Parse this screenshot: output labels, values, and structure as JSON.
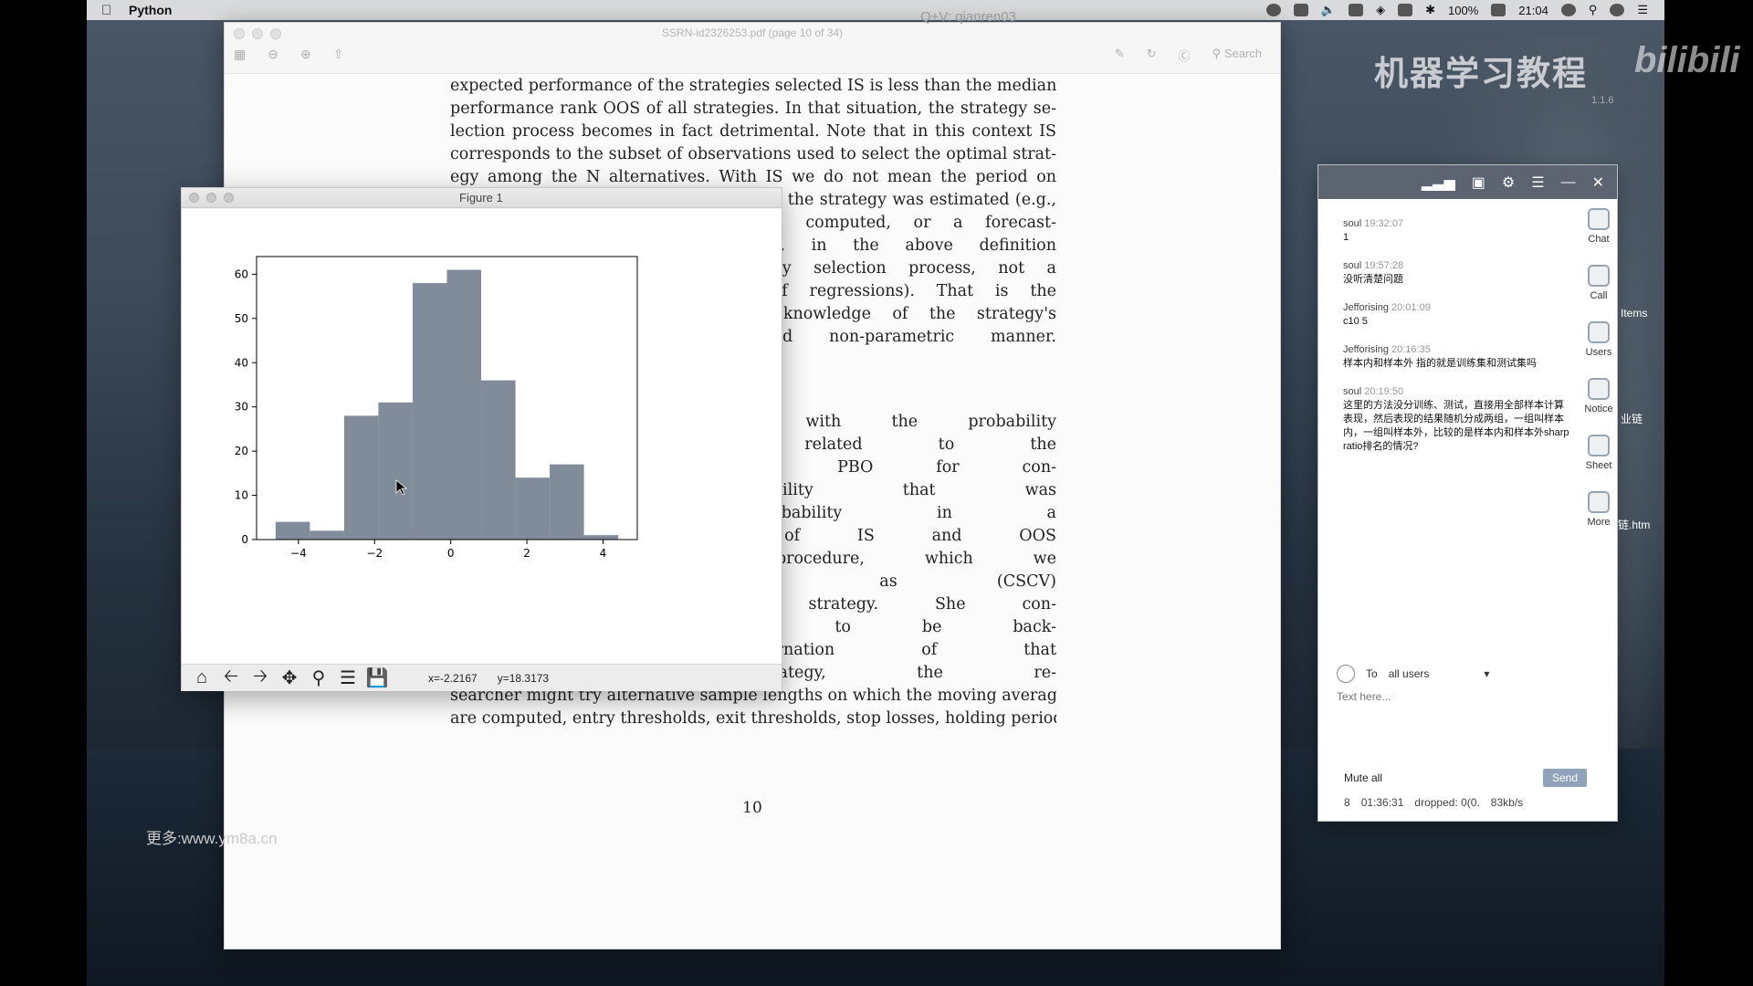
{
  "menubar": {
    "app_name": "Python",
    "battery": "100%",
    "clock": "21:04"
  },
  "overlay": {
    "qq": "Q+V: qianren03",
    "cn_watermark": "机器学习教程",
    "bili_watermark": "bilibili",
    "bili_sub": "1.1.6",
    "url_watermark": "更多:www.ym8a.cn",
    "desk_label_1": "Items",
    "desk_label_2": "业链",
    "desk_label_3": "链.htm"
  },
  "pdf": {
    "window_title": "SSRN-id2326253.pdf (page 10 of 34)",
    "search_placeholder": "Search",
    "lines_top": [
      "expected performance of the strategies selected IS is less than the median",
      "performance rank OOS of all strategies. In that situation, the strategy se-",
      "lection process becomes in fact detrimental. Note that in this context IS",
      "corresponds to the subset of observations used to select the optimal strat-",
      "egy among the N alternatives. With IS we do not mean the period on",
      "which the investment model was fit, e.g. the strategy was estimated (e.g.,",
      "over which moving averages are computed, or a forecast-",
      "ing model is fit). Consequently, in the above definition",
      "we refer to IS as the strategy selection process, not a",
      "calibration (as in the context of regressions). That is the",
      "PBO can be estimated without knowledge of the strategy's",
      "model, in a model-free and non-parametric manner."
    ],
    "lines_bottom": [
      "of interest in dealing with the probability",
      "general characterizations related to the",
      "to quantify say the PBO for con-",
      "estimate the probability that was",
      "Estimating the probability in a",
      "for selecting samples of IS and OOS",
      "establishing such a procedure, which we",
      "cross-validation, abbreviated as (CSCV)",
      "designing an investment strategy. She con-",
      "and parametric values to be back-",
      "most profitable incarnation of that",
      "moving average strategy, the re-",
      "searcher might try alternative sample lengths on which the moving averages",
      "are computed, entry thresholds, exit thresholds, stop losses, holding periods,"
    ],
    "page_number": "10"
  },
  "figure": {
    "window_title": "Figure 1",
    "coord_x": "x=-2.2167",
    "coord_y": "y=18.3173",
    "toolbar": [
      "home-icon",
      "back-icon",
      "forward-icon",
      "pan-icon",
      "zoom-icon",
      "configure-icon",
      "save-icon"
    ]
  },
  "chart_data": {
    "type": "bar",
    "title": "",
    "xlabel": "",
    "ylabel": "",
    "bins": [
      {
        "x0": -4.6,
        "x1": -3.7,
        "value": 4
      },
      {
        "x0": -3.7,
        "x1": -2.8,
        "value": 2
      },
      {
        "x0": -2.8,
        "x1": -1.9,
        "value": 28
      },
      {
        "x0": -1.9,
        "x1": -1.0,
        "value": 31
      },
      {
        "x0": -1.0,
        "x1": -0.1,
        "value": 58
      },
      {
        "x0": -0.1,
        "x1": 0.8,
        "value": 61
      },
      {
        "x0": 0.8,
        "x1": 1.7,
        "value": 36
      },
      {
        "x0": 1.7,
        "x1": 2.6,
        "value": 14
      },
      {
        "x0": 2.6,
        "x1": 3.5,
        "value": 17
      },
      {
        "x0": 3.5,
        "x1": 4.4,
        "value": 1
      }
    ],
    "xlim": [
      -5.1,
      4.9
    ],
    "ylim": [
      0,
      64
    ],
    "xticks": [
      -4,
      -2,
      0,
      2,
      4
    ],
    "xtick_labels": [
      "−4",
      "−2",
      "0",
      "2",
      "4"
    ],
    "yticks": [
      0,
      10,
      20,
      30,
      40,
      50,
      60
    ],
    "bar_color": "#808c99"
  },
  "chat": {
    "messages": [
      {
        "user": "soul",
        "time": "19:32:07",
        "text": "1"
      },
      {
        "user": "soul",
        "time": "19:57:28",
        "text": "没听清楚问题"
      },
      {
        "user": "Jefforising",
        "time": "20:01:09",
        "text": "c10 5"
      },
      {
        "user": "Jefforising",
        "time": "20:16:35",
        "text": "样本内和样本外 指的就是训练集和测试集吗"
      },
      {
        "user": "soul",
        "time": "20:19:50",
        "text": "这里的方法没分训练、测试，直接用全部样本计算表现，然后表现的结果随机分成两组，一组叫样本内，一组叫样本外，比较的是样本内和样本外sharp ratio排名的情况?"
      }
    ],
    "sidebar": [
      {
        "label": "Chat"
      },
      {
        "label": "Call"
      },
      {
        "label": "Users"
      },
      {
        "label": "Notice"
      },
      {
        "label": "Sheet"
      },
      {
        "label": "More"
      }
    ],
    "to_label": "To",
    "to_value": "all users",
    "placeholder": "Text here...",
    "mute_label": "Mute all",
    "send_label": "Send",
    "status_count": "8",
    "status_time": "01:36:31",
    "status_dropped": "dropped: 0(0.",
    "status_rate": "83kb/s"
  }
}
